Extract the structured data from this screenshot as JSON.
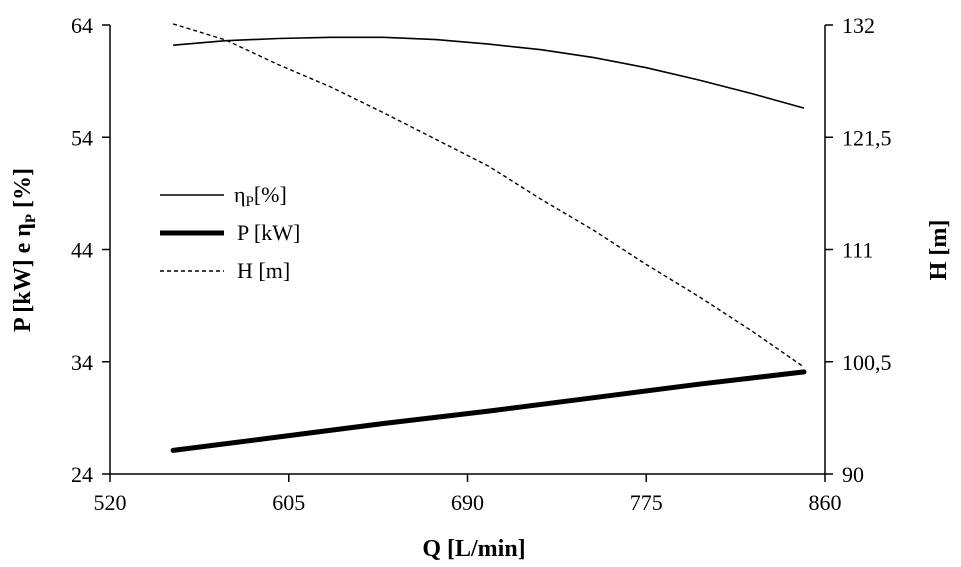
{
  "chart_data": {
    "type": "line",
    "xlabel": "Q [L/min]",
    "ylabel_left": "P [kW] e ηP [%]",
    "ylabel_right": "H [m]",
    "xlim": [
      520,
      860
    ],
    "ylim_left": [
      24,
      64
    ],
    "ylim_right": [
      90,
      132
    ],
    "x_ticks": [
      "520",
      "605",
      "690",
      "775",
      "860"
    ],
    "y_left_ticks": [
      "24",
      "34",
      "44",
      "54",
      "64"
    ],
    "y_right_ticks": [
      "90",
      "100,5",
      "111",
      "121,5",
      "132"
    ],
    "grid": false,
    "legend_position": "left-center",
    "series": [
      {
        "name": "ηP [%]",
        "axis": "left",
        "style": "thin-solid",
        "x": [
          550,
          575,
          600,
          625,
          650,
          675,
          700,
          725,
          750,
          775,
          800,
          825,
          850
        ],
        "values": [
          62.2,
          62.6,
          62.8,
          62.9,
          62.9,
          62.7,
          62.3,
          61.8,
          61.1,
          60.2,
          59.1,
          57.9,
          56.6
        ]
      },
      {
        "name": "P [kW]",
        "axis": "left",
        "style": "thick-solid",
        "x": [
          550,
          600,
          650,
          700,
          750,
          800,
          850
        ],
        "values": [
          26.1,
          27.3,
          28.5,
          29.6,
          30.8,
          32.0,
          33.1
        ]
      },
      {
        "name": "H [m]",
        "axis": "right",
        "style": "dashed",
        "x": [
          550,
          575,
          600,
          625,
          650,
          675,
          700,
          725,
          750,
          775,
          800,
          825,
          850
        ],
        "values": [
          132.1,
          130.6,
          128.3,
          126.2,
          123.8,
          121.3,
          118.8,
          115.7,
          112.8,
          109.6,
          106.6,
          103.4,
          100.0
        ]
      }
    ]
  }
}
